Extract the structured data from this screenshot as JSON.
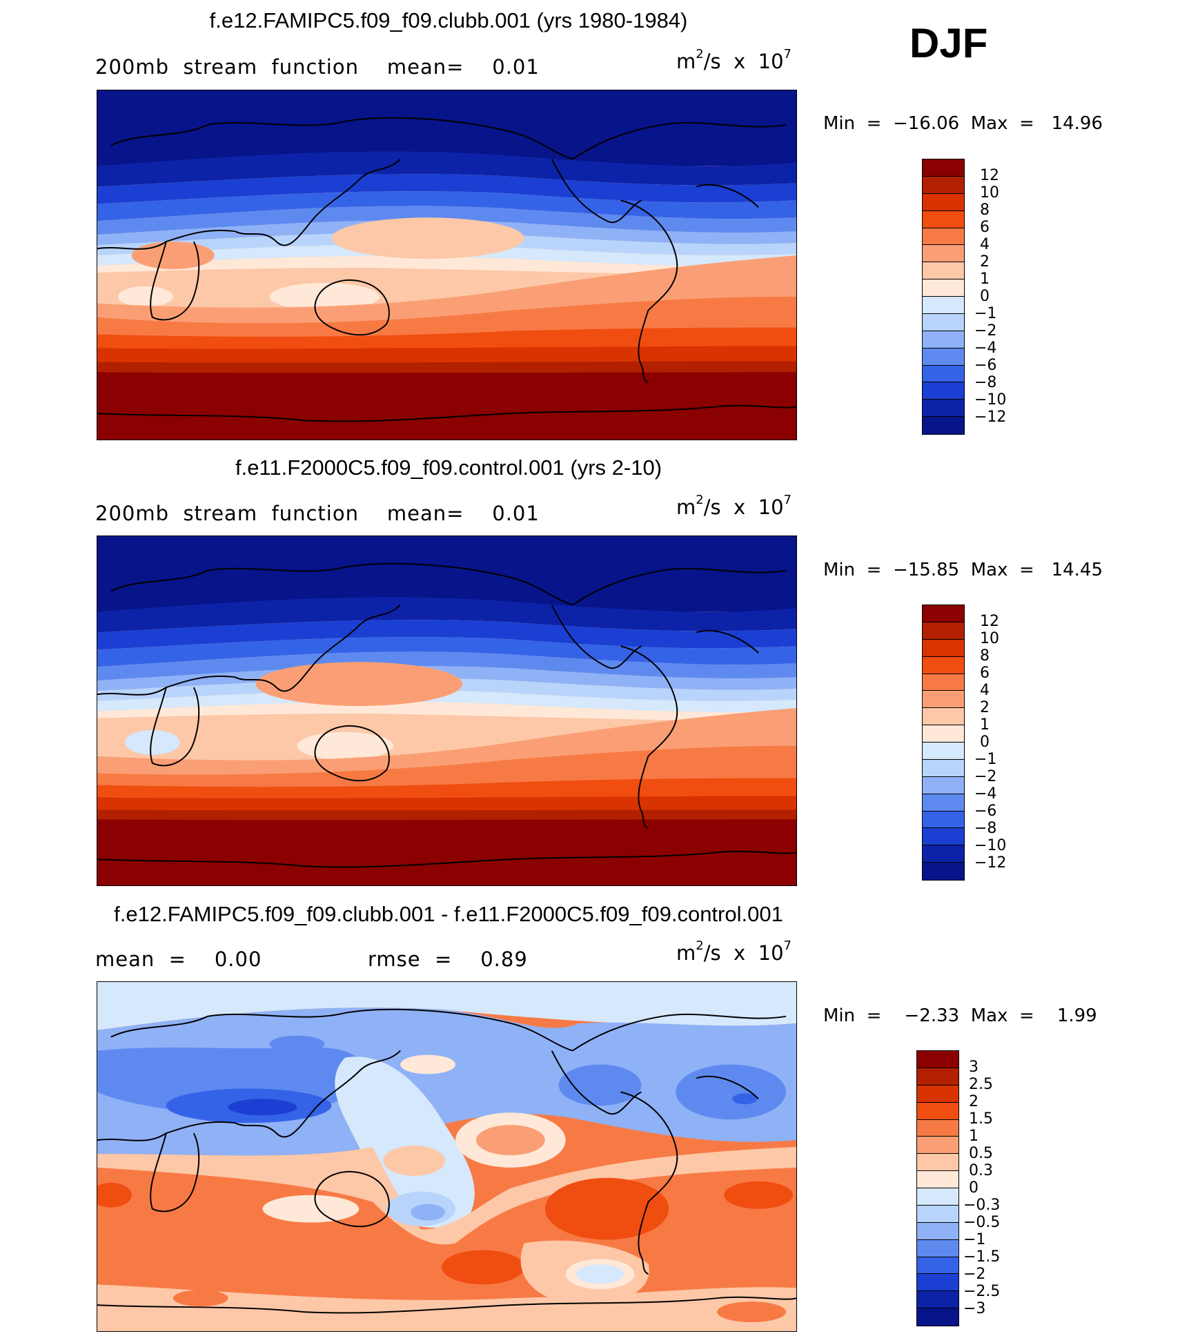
{
  "season": "DJF",
  "panels": [
    {
      "id": "clubb",
      "title": "f.e12.FAMIPC5.f09_f09.clubb.001 (yrs 1980-1984)",
      "subtitle": "200mb  stream  function    mean=    0.01",
      "units_base": "m",
      "units_exp": "2",
      "units_mid": "/s  x  10",
      "units_pow": "7",
      "minmax": "Min  =  −16.06  Max  =   14.96",
      "colorbar_labels": [
        "12",
        "10",
        "8",
        "6",
        "4",
        "2",
        "1",
        "0",
        "−1",
        "−2",
        "−4",
        "−6",
        "−8",
        "−10",
        "−12"
      ]
    },
    {
      "id": "control",
      "title": "f.e11.F2000C5.f09_f09.control.001 (yrs 2-10)",
      "subtitle": "200mb  stream  function    mean=    0.01",
      "units_base": "m",
      "units_exp": "2",
      "units_mid": "/s  x  10",
      "units_pow": "7",
      "minmax": "Min  =  −15.85  Max  =   14.45",
      "colorbar_labels": [
        "12",
        "10",
        "8",
        "6",
        "4",
        "2",
        "1",
        "0",
        "−1",
        "−2",
        "−4",
        "−6",
        "−8",
        "−10",
        "−12"
      ]
    },
    {
      "id": "diff",
      "title": "f.e12.FAMIPC5.f09_f09.clubb.001 - f.e11.F2000C5.f09_f09.control.001",
      "subtitle_left": "mean  =    0.00",
      "subtitle_right": "rmse  =    0.89",
      "units_base": "m",
      "units_exp": "2",
      "units_mid": "/s  x  10",
      "units_pow": "7",
      "minmax": "Min  =    −2.33  Max  =    1.99",
      "colorbar_labels": [
        "3",
        "2.5",
        "2",
        "1.5",
        "1",
        "0.5",
        "0.3",
        "0",
        "−0.3",
        "−0.5",
        "−1",
        "−1.5",
        "−2",
        "−2.5",
        "−3"
      ]
    }
  ],
  "colors": {
    "abs_scale": [
      "#8b0000",
      "#b22000",
      "#d83300",
      "#f04d10",
      "#f77a45",
      "#fa9f75",
      "#fdc8a8",
      "#ffe8d8",
      "#d6e8fb",
      "#b9d4fb",
      "#8fb1f6",
      "#5e8af0",
      "#3563e8",
      "#1a3fd2",
      "#0c23a8",
      "#07148a"
    ],
    "diff_scale": [
      "#8b0000",
      "#b22000",
      "#d83300",
      "#f04d10",
      "#f77a45",
      "#fa9f75",
      "#fdc8a8",
      "#ffe8d8",
      "#d6e8fb",
      "#b9d4fb",
      "#8fb1f6",
      "#5e8af0",
      "#3563e8",
      "#1a3fd2",
      "#0c23a8",
      "#07148a"
    ]
  }
}
